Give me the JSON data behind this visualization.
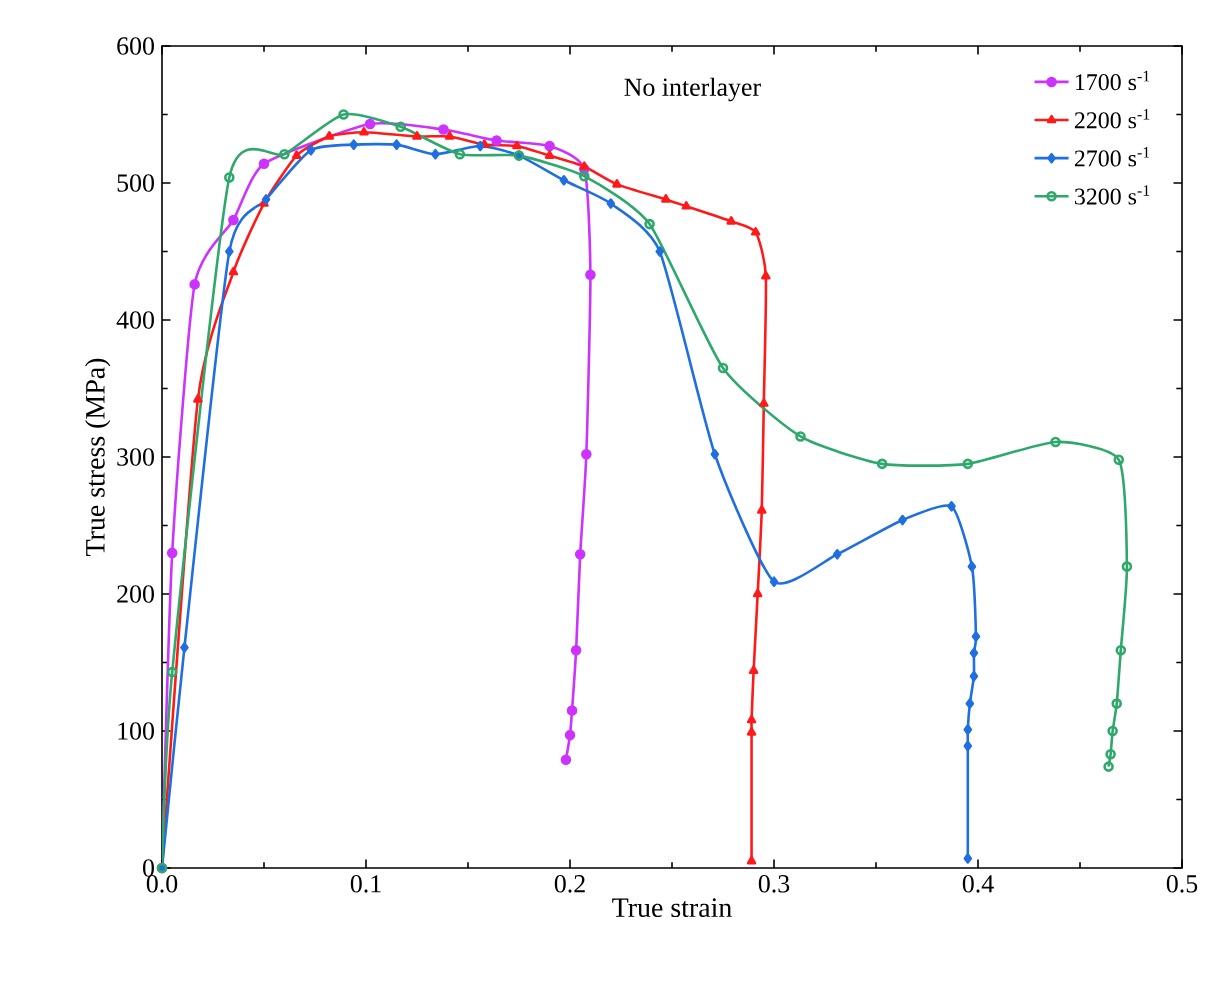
{
  "chart_data": {
    "type": "line",
    "xlabel": "True strain",
    "ylabel": "True stress (MPa)",
    "xlim": [
      0,
      0.5
    ],
    "ylim": [
      0,
      600
    ],
    "xticks": [
      {
        "value": 0,
        "label": "0.0"
      },
      0.1,
      0.2,
      0.3,
      0.4,
      0.5
    ],
    "yticks": [
      0,
      100,
      200,
      300,
      400,
      500,
      600
    ],
    "legend": "top right",
    "grid": false,
    "annotations": [
      "No interlayer"
    ],
    "series": [
      {
        "name": "1700 s$^{-1}$",
        "color": "#cc33ff",
        "marker": "circle",
        "x": [
          0,
          0.005,
          0.016,
          0.035,
          0.05,
          0.102,
          0.138,
          0.164,
          0.19,
          0.207,
          0.21,
          0.208,
          0.205,
          0.203,
          0.201,
          0.2,
          0.198
        ],
        "values": [
          0,
          230,
          426,
          473,
          514,
          543,
          539,
          531,
          527,
          510,
          433,
          302,
          229,
          159,
          115,
          97,
          79
        ]
      },
      {
        "name": "2200 s$^{-1}$",
        "color": "#ff1a1a",
        "marker": "triangle",
        "x": [
          0,
          0.0176,
          0.035,
          0.05,
          0.066,
          0.082,
          0.099,
          0.125,
          0.141,
          0.158,
          0.174,
          0.19,
          0.207,
          0.223,
          0.247,
          0.257,
          0.279,
          0.291,
          0.296,
          0.295,
          0.294,
          0.292,
          0.29,
          0.289,
          0.289,
          0.289
        ],
        "values": [
          0,
          342,
          435,
          485,
          520,
          534,
          537,
          534,
          534,
          528,
          527,
          520,
          512,
          499,
          488,
          483,
          472,
          464,
          432,
          339,
          261,
          200,
          144,
          108,
          99,
          5
        ]
      },
      {
        "name": "2700 s$^{-1}$",
        "color": "#1f6fe0",
        "marker": "diamond",
        "x": [
          0,
          0.011,
          0.033,
          0.051,
          0.073,
          0.094,
          0.115,
          0.134,
          0.156,
          0.175,
          0.197,
          0.22,
          0.244,
          0.271,
          0.3,
          0.331,
          0.363,
          0.387,
          0.397,
          0.399,
          0.398,
          0.398,
          0.396,
          0.395,
          0.395,
          0.395
        ],
        "values": [
          0,
          161,
          450,
          488,
          524,
          528,
          528,
          521,
          527,
          520,
          502,
          485,
          450,
          302,
          209,
          229,
          254,
          264,
          220,
          169,
          157,
          140,
          120,
          101,
          89,
          7
        ]
      },
      {
        "name": "3200 s$^{-1}$",
        "color": "#2ea86b",
        "marker": "open circle",
        "x": [
          0,
          0.005,
          0.033,
          0.06,
          0.089,
          0.117,
          0.146,
          0.175,
          0.207,
          0.239,
          0.275,
          0.313,
          0.353,
          0.395,
          0.438,
          0.469,
          0.473,
          0.47,
          0.468,
          0.466,
          0.465,
          0.464
        ],
        "values": [
          0,
          143,
          504,
          521,
          550,
          541,
          521,
          520,
          505,
          470,
          365,
          315,
          295,
          295,
          311,
          298,
          220,
          159,
          120,
          100,
          83,
          74
        ]
      }
    ]
  }
}
